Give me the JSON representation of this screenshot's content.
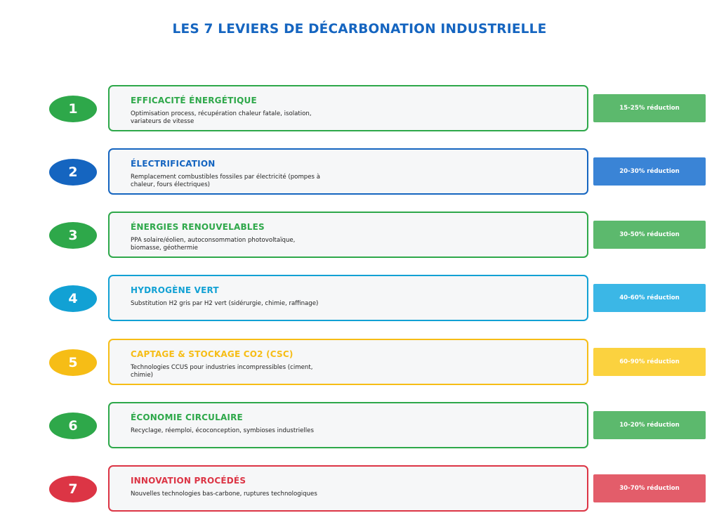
{
  "title": "LES 7 LEVIERS DE DÉCARBONATION INDUSTRIELLE",
  "levers": [
    {
      "number": "1",
      "title": "EFFICACITÉ ÉNERGÉTIQUE",
      "description": "Optimisation process, récupération chaleur fatale, isolation, variateurs de vitesse",
      "reduction": "15-25% réduction",
      "color": "#2ea84a",
      "badge_color": "#5cb96d"
    },
    {
      "number": "2",
      "title": "ÉLECTRIFICATION",
      "description": "Remplacement combustibles fossiles par électricité (pompes à chaleur, fours électriques)",
      "reduction": "20-30% réduction",
      "color": "#1565c0",
      "badge_color": "#3a84d6"
    },
    {
      "number": "3",
      "title": "ÉNERGIES RENOUVELABLES",
      "description": "PPA solaire/éolien, autoconsommation photovoltaïque, biomasse, géothermie",
      "reduction": "30-50% réduction",
      "color": "#2ea84a",
      "badge_color": "#5cb96d"
    },
    {
      "number": "4",
      "title": "HYDROGÈNE VERT",
      "description": "Substitution H2 gris par H2 vert (sidérurgie, chimie, raffinage)",
      "reduction": "40-60% réduction",
      "color": "#12a1d4",
      "badge_color": "#3bb7e6"
    },
    {
      "number": "5",
      "title": "CAPTAGE & STOCKAGE CO2 (CSC)",
      "description": "Technologies CCUS pour industries incompressibles (ciment, chimie)",
      "reduction": "60-90% réduction",
      "color": "#f6bd16",
      "badge_color": "#fbd23f"
    },
    {
      "number": "6",
      "title": "ÉCONOMIE CIRCULAIRE",
      "description": "Recyclage, réemploi, écoconception, symbioses industrielles",
      "reduction": "10-20% réduction",
      "color": "#2ea84a",
      "badge_color": "#5cb96d"
    },
    {
      "number": "7",
      "title": "INNOVATION PROCÉDÉS",
      "description": "Nouvelles technologies bas-carbone, ruptures technologiques",
      "reduction": "30-70% réduction",
      "color": "#dc3545",
      "badge_color": "#e35d6a"
    }
  ]
}
